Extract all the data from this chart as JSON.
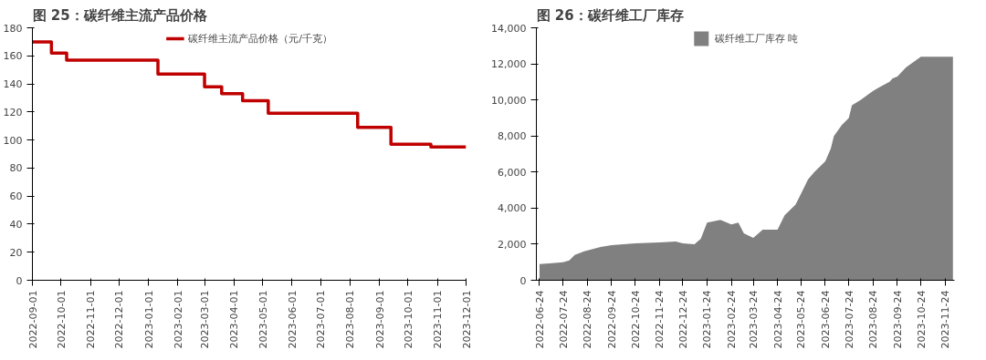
{
  "chart_data": [
    {
      "type": "step",
      "title": "图 25：碳纤维主流产品价格",
      "x": [
        "2022-09-01",
        "2022-09-21",
        "2022-10-07",
        "2023-01-11",
        "2023-03-01",
        "2023-03-19",
        "2023-04-10",
        "2023-05-07",
        "2023-08-09",
        "2023-09-13",
        "2023-10-25",
        "2023-12-01"
      ],
      "series": [
        {
          "name": "碳纤维主流产品价格（元/千克）",
          "color": "#c00000",
          "values": [
            170,
            162,
            157,
            147,
            138,
            133,
            128,
            119,
            109,
            97,
            95,
            95
          ]
        }
      ],
      "xlim": [
        "2022-09-01",
        "2023-12-01"
      ],
      "xticks": [
        "2022-09-01",
        "2022-10-01",
        "2022-11-01",
        "2022-12-01",
        "2023-01-01",
        "2023-02-01",
        "2023-03-01",
        "2023-04-01",
        "2023-05-01",
        "2023-06-01",
        "2023-07-01",
        "2023-08-01",
        "2023-09-01",
        "2023-10-01",
        "2023-11-01",
        "2023-12-01"
      ],
      "ylim": [
        0,
        180
      ],
      "yticks": [
        0,
        20,
        40,
        60,
        80,
        100,
        120,
        140,
        160,
        180
      ],
      "grid": false,
      "legend": "top"
    },
    {
      "type": "area",
      "title": "图 26：碳纤维工厂库存",
      "x": [
        "2022-06-24",
        "2022-07-10",
        "2022-07-24",
        "2022-08-01",
        "2022-08-08",
        "2022-08-20",
        "2022-09-10",
        "2022-09-24",
        "2022-10-24",
        "2022-11-24",
        "2022-12-15",
        "2022-12-24",
        "2023-01-08",
        "2023-01-16",
        "2023-01-24",
        "2023-02-10",
        "2023-02-24",
        "2023-03-05",
        "2023-03-12",
        "2023-03-24",
        "2023-04-05",
        "2023-04-24",
        "2023-05-03",
        "2023-05-17",
        "2023-05-24",
        "2023-06-02",
        "2023-06-10",
        "2023-06-24",
        "2023-07-01",
        "2023-07-05",
        "2023-07-15",
        "2023-07-24",
        "2023-07-28",
        "2023-08-08",
        "2023-08-24",
        "2023-09-01",
        "2023-09-14",
        "2023-09-18",
        "2023-09-24",
        "2023-10-05",
        "2023-10-24",
        "2023-11-24",
        "2023-12-04"
      ],
      "series": [
        {
          "name": "碳纤维工厂库存 吨",
          "color": "#808080",
          "values": [
            900,
            950,
            1000,
            1100,
            1400,
            1600,
            1850,
            1950,
            2050,
            2100,
            2150,
            2050,
            2000,
            2300,
            3200,
            3350,
            3100,
            3200,
            2600,
            2350,
            2800,
            2800,
            3600,
            4200,
            4800,
            5600,
            6000,
            6600,
            7300,
            8000,
            8600,
            9000,
            9700,
            10000,
            10500,
            10700,
            11000,
            11200,
            11300,
            11800,
            12400,
            12400,
            12400
          ]
        }
      ],
      "xlim": [
        "2022-06-20",
        "2023-12-06"
      ],
      "xticks": [
        "2022-06-24",
        "2022-07-24",
        "2022-08-24",
        "2022-09-24",
        "2022-10-24",
        "2022-11-24",
        "2022-12-24",
        "2023-01-24",
        "2023-02-24",
        "2023-03-24",
        "2023-04-24",
        "2023-05-24",
        "2023-06-24",
        "2023-07-24",
        "2023-08-24",
        "2023-09-24",
        "2023-10-24",
        "2023-11-24"
      ],
      "ylim": [
        0,
        14000
      ],
      "yticks": [
        {
          "value": 0,
          "label": "0"
        },
        {
          "value": 2000,
          "label": "2,000"
        },
        {
          "value": 4000,
          "label": "4,000"
        },
        {
          "value": 6000,
          "label": "6,000"
        },
        {
          "value": 8000,
          "label": "8,000"
        },
        {
          "value": 10000,
          "label": "10,000"
        },
        {
          "value": 12000,
          "label": "12,000"
        },
        {
          "value": 14000,
          "label": "14,000"
        }
      ],
      "grid": false,
      "legend": "top"
    }
  ]
}
